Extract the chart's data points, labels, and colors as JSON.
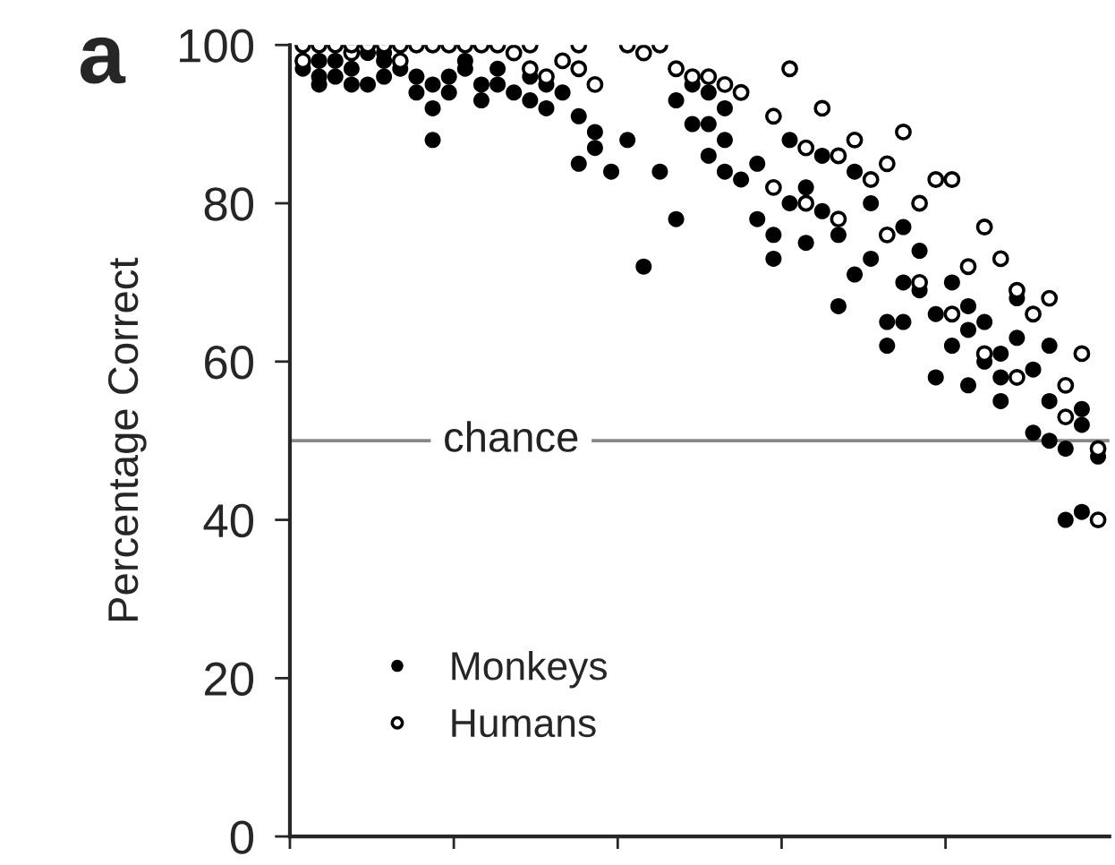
{
  "chart_data": {
    "type": "scatter",
    "ylabel": "Percentage Correct",
    "annotations": [
      "a"
    ],
    "categories": [
      null,
      null,
      null,
      null,
      null,
      null,
      null,
      null,
      null,
      null,
      null,
      null,
      null,
      null,
      null,
      null,
      null,
      null,
      null,
      null,
      null,
      null,
      null,
      null,
      null,
      null,
      null,
      null,
      null,
      null,
      null,
      null,
      null,
      null,
      null,
      null,
      null,
      null,
      null,
      null,
      null,
      null,
      null,
      null,
      null,
      null,
      null,
      null,
      null,
      null
    ],
    "ylim": [
      0,
      100
    ],
    "yticks": [
      0,
      20,
      40,
      60,
      80,
      100
    ],
    "grid": false,
    "legend": "bottom left",
    "ref_lines": [
      {
        "axis": "y",
        "value": 50,
        "label": "chance",
        "color": "#888888"
      }
    ],
    "series": [
      {
        "name": "Monkeys",
        "color": "#000000",
        "marker": "circle",
        "values": [
          97,
          96,
          98,
          95,
          99,
          96,
          97,
          94,
          95,
          96,
          98,
          93,
          95,
          94,
          96,
          92,
          94,
          91,
          87,
          84,
          88,
          72,
          84,
          78,
          95,
          90,
          92,
          83,
          85,
          76,
          88,
          82,
          79,
          76,
          84,
          73,
          65,
          70,
          69,
          66,
          62,
          67,
          60,
          61,
          63,
          51,
          55,
          49,
          41,
          48
        ]
      },
      {
        "color": "#000000",
        "marker": "circle",
        "values": [
          null,
          98,
          96,
          97,
          95,
          98,
          null,
          96,
          92,
          94,
          97,
          95,
          97,
          null,
          93,
          95,
          null,
          85,
          89,
          null,
          null,
          null,
          null,
          93,
          90,
          86,
          88,
          null,
          78,
          73,
          80,
          75,
          86,
          67,
          71,
          80,
          62,
          65,
          74,
          58,
          70,
          57,
          65,
          58,
          68,
          59,
          50,
          40,
          54,
          null
        ]
      },
      {
        "color": "#000000",
        "marker": "circle",
        "values": [
          null,
          95,
          null,
          null,
          null,
          99,
          null,
          null,
          88,
          null,
          null,
          null,
          null,
          null,
          null,
          null,
          null,
          null,
          null,
          null,
          null,
          null,
          null,
          null,
          null,
          94,
          84,
          null,
          null,
          null,
          null,
          null,
          null,
          null,
          null,
          null,
          null,
          77,
          null,
          null,
          null,
          64,
          null,
          55,
          null,
          null,
          62,
          null,
          52,
          null
        ]
      },
      {
        "name": "Humans",
        "color": "#000000",
        "marker": "open circle",
        "values": [
          98,
          100,
          100,
          99,
          100,
          100,
          98,
          100,
          100,
          100,
          100,
          100,
          100,
          99,
          100,
          96,
          98,
          100,
          95,
          null,
          100,
          null,
          100,
          97,
          96,
          96,
          null,
          94,
          null,
          91,
          97,
          87,
          92,
          86,
          88,
          83,
          85,
          89,
          80,
          83,
          83,
          72,
          77,
          73,
          69,
          66,
          68,
          57,
          61,
          40
        ]
      },
      {
        "color": "#000000",
        "marker": "open circle",
        "values": [
          100,
          null,
          null,
          100,
          null,
          null,
          100,
          null,
          null,
          null,
          null,
          null,
          null,
          null,
          97,
          null,
          null,
          97,
          null,
          null,
          null,
          99,
          null,
          null,
          null,
          null,
          95,
          null,
          null,
          82,
          null,
          80,
          null,
          78,
          null,
          null,
          76,
          null,
          70,
          null,
          66,
          null,
          61,
          null,
          58,
          null,
          null,
          53,
          null,
          49
        ]
      }
    ]
  }
}
